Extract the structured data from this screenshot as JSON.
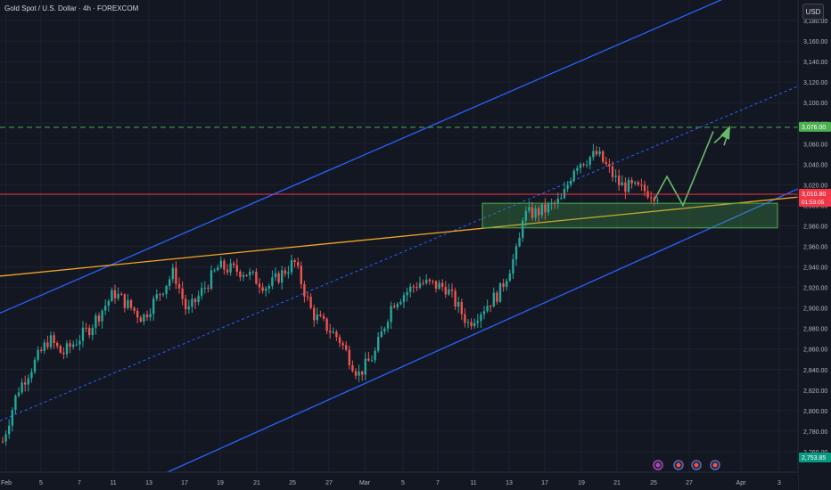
{
  "header": {
    "symbol_title": "Gold Spot / U.S. Dollar · 4h · FOREXCOM",
    "currency": "USD"
  },
  "colors": {
    "background": "#131722",
    "grid": "#1e2230",
    "up": "#26a69a",
    "down": "#ef5350",
    "channel": "#2962ff",
    "trendline": "#f5a623",
    "target": "#4caf50",
    "zone": "#4caf50"
  },
  "chart_data": {
    "type": "candlestick",
    "title": "",
    "instrument": "Gold Spot / U.S. Dollar",
    "interval": "4h",
    "source": "FOREXCOM",
    "currency": "USD",
    "ylim": [
      2740,
      3200
    ],
    "y_ticks": [
      "2,760.00",
      "2,780.00",
      "2,800.00",
      "2,820.00",
      "2,840.00",
      "2,860.00",
      "2,880.00",
      "2,900.00",
      "2,920.00",
      "2,940.00",
      "2,960.00",
      "2,980.00",
      "3,000.00",
      "3,020.00",
      "3,040.00",
      "3,060.00",
      "3,080.00",
      "3,100.00",
      "3,120.00",
      "3,140.00",
      "3,160.00",
      "3,180.00"
    ],
    "x_ticks": [
      "Feb",
      "5",
      "7",
      "11",
      "13",
      "17",
      "19",
      "21",
      "25",
      "27",
      "Mar",
      "5",
      "7",
      "11",
      "13",
      "17",
      "19",
      "21",
      "25",
      "27",
      "Apr",
      "3"
    ],
    "price_labels": [
      {
        "label": "3,076.00",
        "value": 3076,
        "color": "#4caf50"
      },
      {
        "label": "3,010.80",
        "sublabel": "01:53:05",
        "value": 3010.8,
        "color": "#f23645"
      },
      {
        "label": "2,753.85",
        "value": 2753.85,
        "color": "#089981"
      }
    ],
    "horizontal_lines": [
      {
        "value": 3076,
        "style": "dashed",
        "color": "#4caf50"
      },
      {
        "value": 3010.8,
        "style": "solid",
        "color": "#f23645"
      }
    ],
    "support_zone": {
      "x_from": "Mar 11",
      "x_to": "Mar 30",
      "y_from": 2978,
      "y_to": 3002
    },
    "projected_path": [
      3004,
      3028,
      3000,
      3072
    ]
  }
}
